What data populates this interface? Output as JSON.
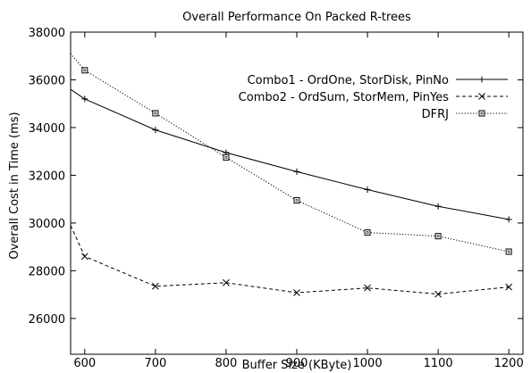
{
  "chart_data": {
    "type": "line",
    "title": "Overall Performance On Packed R-trees",
    "xlabel": "Buffer Size (KByte)",
    "ylabel": "Overall Cost in Time (ms)",
    "xlim": [
      580,
      1220
    ],
    "ylim": [
      24500,
      38000
    ],
    "x_ticks": [
      600,
      700,
      800,
      900,
      1000,
      1100,
      1200
    ],
    "y_ticks": [
      26000,
      28000,
      30000,
      32000,
      34000,
      36000,
      38000
    ],
    "grid": false,
    "legend_position": "top-right",
    "series": [
      {
        "name": "Combo1 - OrdOne, StorDisk, PinNo",
        "line_style": "solid",
        "marker": "plus",
        "color": "#000000",
        "x": [
          580,
          600,
          700,
          800,
          900,
          1000,
          1100,
          1200
        ],
        "y": [
          35600,
          35200,
          33900,
          32950,
          32150,
          31400,
          30700,
          30150
        ]
      },
      {
        "name": "Combo2 - OrdSum, StorMem, PinYes",
        "line_style": "dashed",
        "marker": "cross",
        "color": "#000000",
        "x": [
          580,
          600,
          700,
          800,
          900,
          1000,
          1100,
          1200
        ],
        "y": [
          29900,
          28600,
          27350,
          27500,
          27080,
          27280,
          27020,
          27320
        ]
      },
      {
        "name": "DFRJ",
        "line_style": "dotted",
        "marker": "square",
        "color": "#000000",
        "x": [
          580,
          600,
          700,
          800,
          900,
          1000,
          1100,
          1200
        ],
        "y": [
          37100,
          36400,
          34600,
          32750,
          30950,
          29600,
          29450,
          28800
        ]
      }
    ]
  }
}
